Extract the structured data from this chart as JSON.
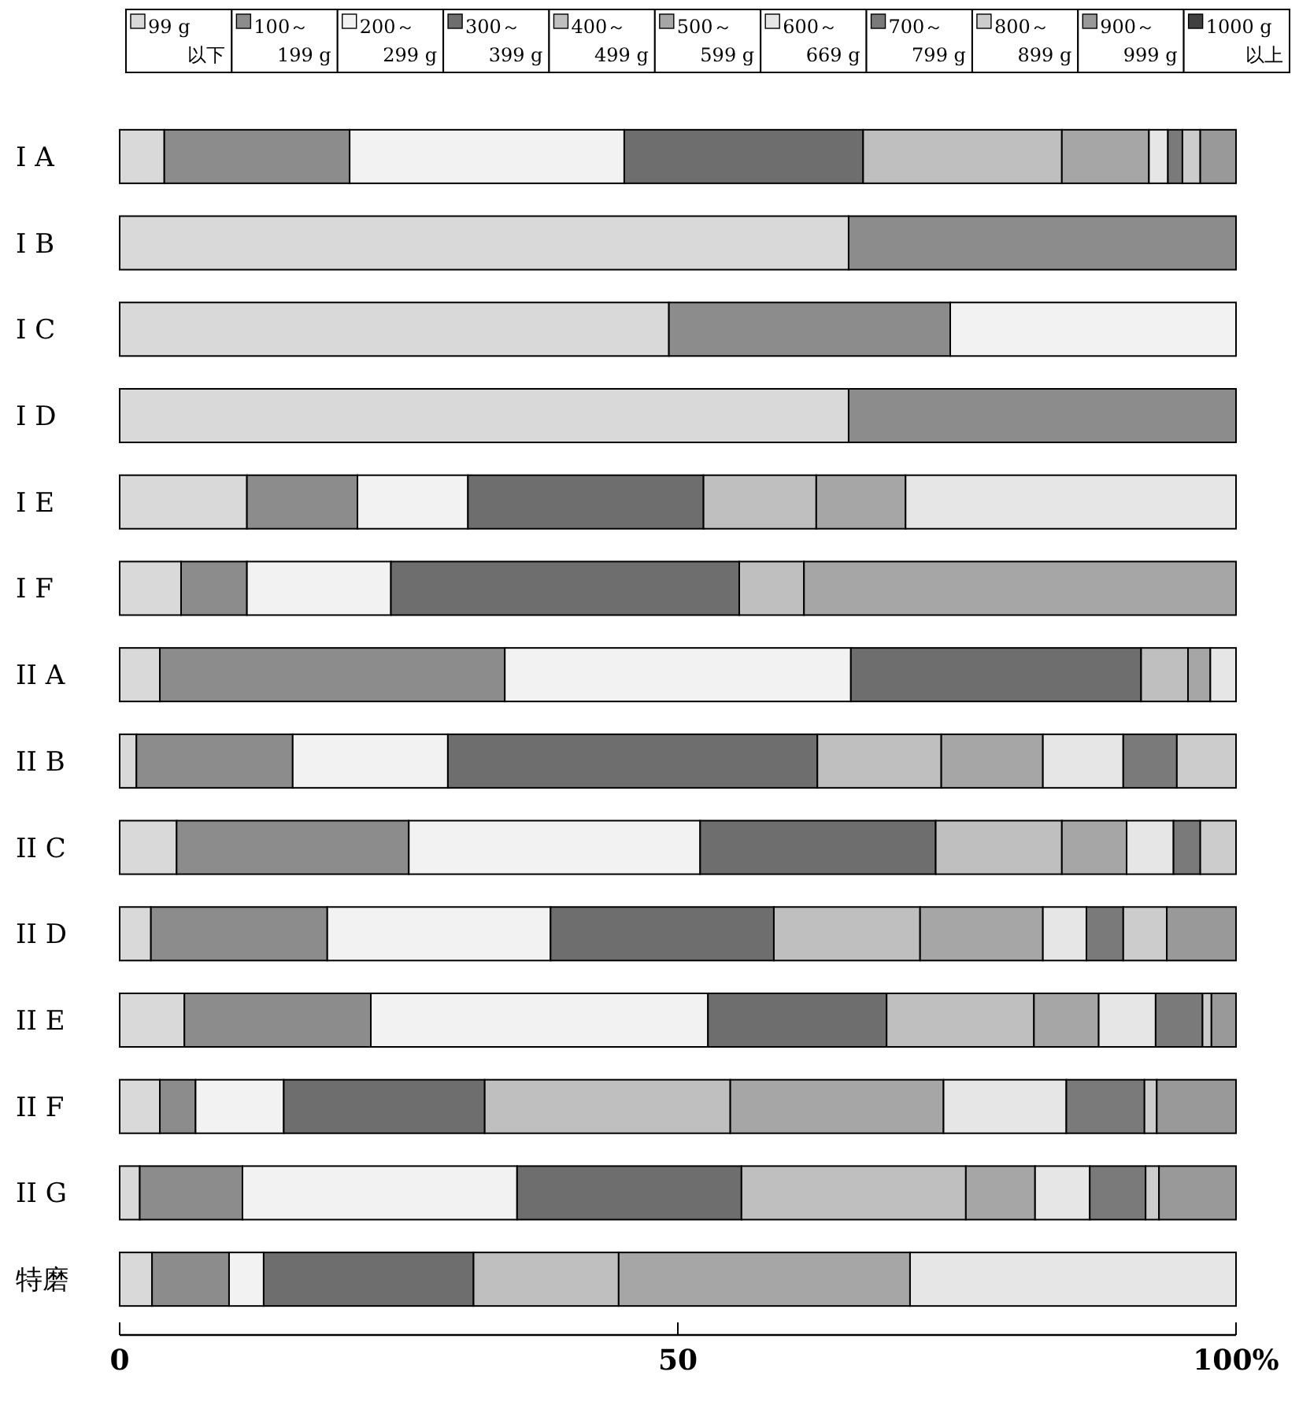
{
  "chart_data": {
    "type": "bar",
    "orientation": "horizontal",
    "stacked": true,
    "legend": "top",
    "grid": false,
    "categories": [
      "I A",
      "I B",
      "I C",
      "I D",
      "I E",
      "I F",
      "II A",
      "II B",
      "II C",
      "II D",
      "II E",
      "II F",
      "II G",
      "特磨"
    ],
    "xlim": [
      0,
      100
    ],
    "xticks": [
      0,
      50,
      {
        "value": 100,
        "label": "100%"
      }
    ],
    "series": [
      {
        "name": "99 g\n以下",
        "color": "#d9d9d9",
        "values": [
          4.0,
          65.3,
          49.2,
          65.3,
          11.4,
          5.5,
          3.6,
          1.5,
          5.1,
          2.8,
          5.8,
          3.6,
          1.8,
          2.9
        ]
      },
      {
        "name": "100～\n199 g",
        "color": "#8c8c8c",
        "values": [
          16.6,
          34.7,
          25.2,
          34.7,
          9.9,
          5.9,
          30.9,
          14.0,
          20.8,
          15.8,
          16.7,
          3.2,
          9.2,
          6.9
        ]
      },
      {
        "name": "200～\n299 g",
        "color": "#f2f2f2",
        "values": [
          24.6,
          0,
          25.6,
          0,
          9.9,
          12.9,
          31.0,
          13.9,
          26.1,
          20.0,
          30.2,
          7.9,
          24.6,
          3.1
        ]
      },
      {
        "name": "300～\n399 g",
        "color": "#6e6e6e",
        "values": [
          21.4,
          0,
          0,
          0,
          21.1,
          31.2,
          26.0,
          33.1,
          21.1,
          20.0,
          16.0,
          18.0,
          20.1,
          18.8
        ]
      },
      {
        "name": "400～\n499 g",
        "color": "#bfbfbf",
        "values": [
          17.8,
          0,
          0,
          0,
          10.1,
          5.8,
          4.2,
          11.1,
          11.3,
          13.1,
          13.2,
          22.0,
          20.1,
          13.0
        ]
      },
      {
        "name": "500～\n599 g",
        "color": "#a6a6a6",
        "values": [
          7.8,
          0,
          0,
          0,
          8.0,
          38.7,
          2.0,
          9.1,
          5.8,
          11.0,
          5.8,
          19.1,
          6.2,
          26.1
        ]
      },
      {
        "name": "600～\n669 g",
        "color": "#e6e6e6",
        "values": [
          1.7,
          0,
          0,
          0,
          29.6,
          0,
          2.3,
          7.2,
          4.2,
          3.9,
          5.1,
          11.0,
          4.9,
          29.2
        ]
      },
      {
        "name": "700～\n799 g",
        "color": "#7a7a7a",
        "values": [
          1.3,
          0,
          0,
          0,
          0,
          0,
          0,
          4.8,
          2.4,
          3.3,
          4.2,
          7.0,
          5.0,
          0
        ]
      },
      {
        "name": "800～\n899 g",
        "color": "#cccccc",
        "values": [
          1.6,
          0,
          0,
          0,
          0,
          0,
          0,
          5.3,
          3.2,
          3.9,
          0.8,
          1.1,
          1.2,
          0
        ]
      },
      {
        "name": "900～\n999 g",
        "color": "#999999",
        "values": [
          3.2,
          0,
          0,
          0,
          0,
          0,
          0,
          0,
          0,
          6.2,
          2.2,
          7.1,
          6.9,
          0
        ]
      },
      {
        "name": "1000 g\n以上",
        "color": "#404040",
        "values": [
          0,
          0,
          0,
          0,
          0,
          0,
          0,
          0,
          0,
          0,
          0,
          0,
          0,
          0
        ]
      }
    ]
  }
}
